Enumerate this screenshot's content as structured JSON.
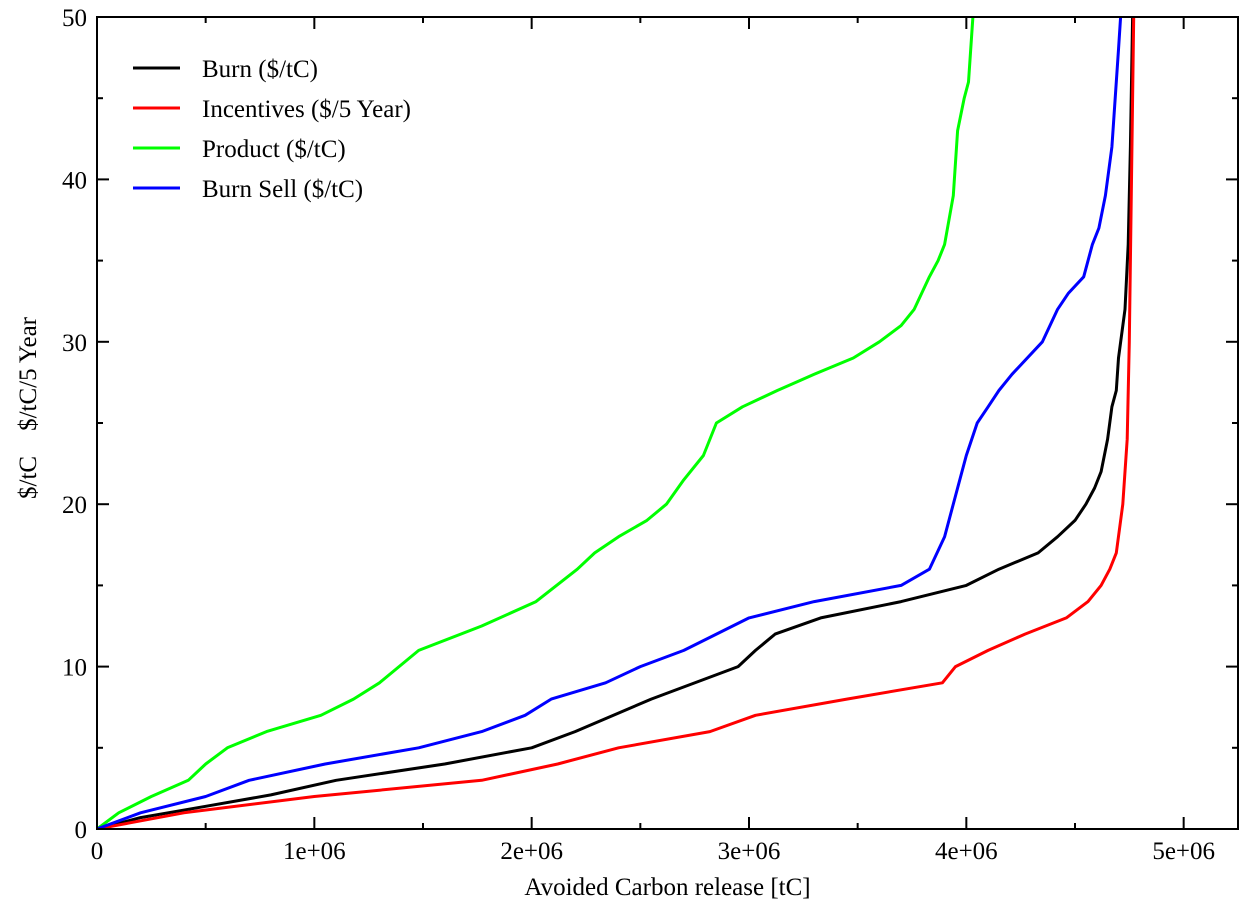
{
  "chart_data": {
    "type": "line",
    "xlabel": "Avoided Carbon release [tC]",
    "ylabel": "$/tC    $/tC/5 Year",
    "xlim": [
      0,
      5250000
    ],
    "ylim": [
      0,
      50
    ],
    "x_ticks": [
      0,
      1000000,
      2000000,
      3000000,
      4000000,
      5000000
    ],
    "x_tick_labels": [
      "0",
      "1e+06",
      "2e+06",
      "3e+06",
      "4e+06",
      "5e+06"
    ],
    "y_ticks": [
      0,
      10,
      20,
      30,
      40,
      50
    ],
    "y_tick_labels": [
      "0",
      "10",
      "20",
      "30",
      "40",
      "50"
    ],
    "grid": false,
    "legend_position": "top-left",
    "series": [
      {
        "name": "Burn ($/tC)",
        "color": "#000000",
        "points": [
          [
            0,
            0
          ],
          [
            200000,
            0.7
          ],
          [
            500000,
            1.4
          ],
          [
            800000,
            2.1
          ],
          [
            1100000,
            3.0
          ],
          [
            1600000,
            4.0
          ],
          [
            2000000,
            5.0
          ],
          [
            2200000,
            6.0
          ],
          [
            2550000,
            8.0
          ],
          [
            2950000,
            10.0
          ],
          [
            3030000,
            11.0
          ],
          [
            3120000,
            12.0
          ],
          [
            3330000,
            13.0
          ],
          [
            3700000,
            14.0
          ],
          [
            4000000,
            15.0
          ],
          [
            4150000,
            16.0
          ],
          [
            4330000,
            17.0
          ],
          [
            4420000,
            18.0
          ],
          [
            4500000,
            19.0
          ],
          [
            4550000,
            20.0
          ],
          [
            4590000,
            21.0
          ],
          [
            4620000,
            22.0
          ],
          [
            4650000,
            24.0
          ],
          [
            4670000,
            26.0
          ],
          [
            4690000,
            27.0
          ],
          [
            4700000,
            29.0
          ],
          [
            4730000,
            32.0
          ],
          [
            4745000,
            36.0
          ],
          [
            4755000,
            42.0
          ],
          [
            4765000,
            50.0
          ]
        ]
      },
      {
        "name": "Incentives ($/5 Year)",
        "color": "#ff0000",
        "points": [
          [
            0,
            0
          ],
          [
            400000,
            1.0
          ],
          [
            1000000,
            2.0
          ],
          [
            1770000,
            3.0
          ],
          [
            2120000,
            4.0
          ],
          [
            2400000,
            5.0
          ],
          [
            2820000,
            6.0
          ],
          [
            3030000,
            7.0
          ],
          [
            3450000,
            8.0
          ],
          [
            3890000,
            9.0
          ],
          [
            3950000,
            10.0
          ],
          [
            4100000,
            11.0
          ],
          [
            4270000,
            12.0
          ],
          [
            4460000,
            13.0
          ],
          [
            4560000,
            14.0
          ],
          [
            4620000,
            15.0
          ],
          [
            4660000,
            16.0
          ],
          [
            4690000,
            17.0
          ],
          [
            4720000,
            20.0
          ],
          [
            4740000,
            24.0
          ],
          [
            4750000,
            30.0
          ],
          [
            4760000,
            40.0
          ],
          [
            4770000,
            50.0
          ]
        ]
      },
      {
        "name": "Product ($/tC)",
        "color": "#00ff00",
        "points": [
          [
            0,
            0
          ],
          [
            100000,
            1.0
          ],
          [
            250000,
            2.0
          ],
          [
            420000,
            3.0
          ],
          [
            500000,
            4.0
          ],
          [
            600000,
            5.0
          ],
          [
            780000,
            6.0
          ],
          [
            1030000,
            7.0
          ],
          [
            1180000,
            8.0
          ],
          [
            1300000,
            9.0
          ],
          [
            1480000,
            11.0
          ],
          [
            1770000,
            12.5
          ],
          [
            2020000,
            14.0
          ],
          [
            2210000,
            16.0
          ],
          [
            2290000,
            17.0
          ],
          [
            2400000,
            18.0
          ],
          [
            2530000,
            19.0
          ],
          [
            2620000,
            20.0
          ],
          [
            2700000,
            21.5
          ],
          [
            2790000,
            23.0
          ],
          [
            2850000,
            25.0
          ],
          [
            2970000,
            26.0
          ],
          [
            3130000,
            27.0
          ],
          [
            3300000,
            28.0
          ],
          [
            3480000,
            29.0
          ],
          [
            3600000,
            30.0
          ],
          [
            3700000,
            31.0
          ],
          [
            3760000,
            32.0
          ],
          [
            3830000,
            34.0
          ],
          [
            3870000,
            35.0
          ],
          [
            3900000,
            36.0
          ],
          [
            3940000,
            39.0
          ],
          [
            3960000,
            43.0
          ],
          [
            3990000,
            45.0
          ],
          [
            4010000,
            46.0
          ],
          [
            4020000,
            48.0
          ],
          [
            4030000,
            50.0
          ]
        ]
      },
      {
        "name": "Burn Sell ($/tC)",
        "color": "#0000ff",
        "points": [
          [
            0,
            0
          ],
          [
            200000,
            1.0
          ],
          [
            500000,
            2.0
          ],
          [
            700000,
            3.0
          ],
          [
            1050000,
            4.0
          ],
          [
            1480000,
            5.0
          ],
          [
            1770000,
            6.0
          ],
          [
            1970000,
            7.0
          ],
          [
            2090000,
            8.0
          ],
          [
            2340000,
            9.0
          ],
          [
            2500000,
            10.0
          ],
          [
            2700000,
            11.0
          ],
          [
            2850000,
            12.0
          ],
          [
            3000000,
            13.0
          ],
          [
            3300000,
            14.0
          ],
          [
            3700000,
            15.0
          ],
          [
            3830000,
            16.0
          ],
          [
            3900000,
            18.0
          ],
          [
            3960000,
            21.0
          ],
          [
            4000000,
            23.0
          ],
          [
            4050000,
            25.0
          ],
          [
            4100000,
            26.0
          ],
          [
            4150000,
            27.0
          ],
          [
            4210000,
            28.0
          ],
          [
            4350000,
            30.0
          ],
          [
            4420000,
            32.0
          ],
          [
            4470000,
            33.0
          ],
          [
            4540000,
            34.0
          ],
          [
            4580000,
            36.0
          ],
          [
            4610000,
            37.0
          ],
          [
            4640000,
            39.0
          ],
          [
            4670000,
            42.0
          ],
          [
            4680000,
            44.0
          ],
          [
            4700000,
            48.0
          ],
          [
            4710000,
            50.0
          ]
        ]
      }
    ]
  }
}
